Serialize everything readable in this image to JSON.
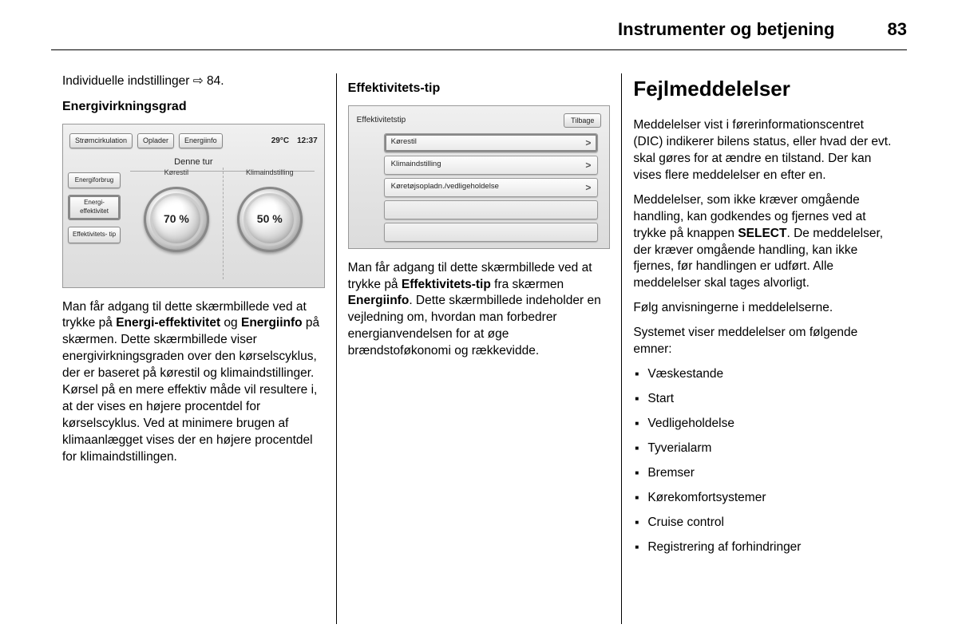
{
  "page_header": {
    "title": "Instrumenter og betjening",
    "number": "83"
  },
  "col1": {
    "line1_prefix": "Individuelle indstillinger ",
    "line1_ref": "⇨ 84.",
    "h_section": "Energivirkningsgrad",
    "screen": {
      "tabs": [
        "Strømcirkulation",
        "Oplader",
        "Energiinfo"
      ],
      "temp": "29°C",
      "time": "12:37",
      "subtitle": "Denne tur",
      "left_buttons": [
        "Energiforbrug",
        "Energi-\neffektivitet",
        "Effektivitets-\ntip"
      ],
      "left_active_index": 1,
      "dials": [
        {
          "label": "Kørestil",
          "value": "70 %"
        },
        {
          "label": "Klimaindstilling",
          "value": "50 %"
        }
      ]
    },
    "para_parts": [
      "Man får adgang til dette skærmbillede ved at trykke på ",
      "Energi-effektivitet",
      " og ",
      "Energiinfo",
      " på skærmen. Dette skærmbillede viser energivirkningsgraden over den kørselscyklus, der er baseret på kørestil og klimaindstillinger. Kørsel på en mere effektiv måde vil resultere i, at der vises en højere procentdel for kørselscyklus. Ved at minimere brugen af klimaanlægget vises der en højere procentdel for klimaindstillingen."
    ]
  },
  "col2": {
    "h_section": "Effektivitets-tip",
    "screen": {
      "title": "Effektivitetstip",
      "back": "Tilbage",
      "rows": [
        {
          "label": "Kørestil",
          "selected": true
        },
        {
          "label": "Klimaindstilling",
          "selected": false
        },
        {
          "label": "Køretøjsopladn./vedligeholdelse",
          "selected": false
        },
        {
          "label": "",
          "selected": false
        },
        {
          "label": "",
          "selected": false
        }
      ]
    },
    "para_parts": [
      "Man får adgang til dette skærmbillede ved at trykke på ",
      "Effektivitets-tip",
      " fra skærmen ",
      "Energiinfo",
      ". Dette skærmbillede indeholder en vejledning om, hvordan man forbedrer energianvendelsen for at øge brændstoføkonomi og rækkevidde."
    ]
  },
  "col3": {
    "h_big": "Fejlmeddelelser",
    "p1": "Meddelelser vist i førerinformationscentret (DIC) indikerer bilens status, eller hvad der evt. skal gøres for at ændre en tilstand. Der kan vises flere meddelelser en efter en.",
    "p2_parts": [
      "Meddelelser, som ikke kræver omgående handling, kan godkendes og fjernes ved at trykke på knappen ",
      "SELECT",
      ". De meddelelser, der kræver omgående handling, kan ikke fjernes, før handlingen er udført. Alle meddelelser skal tages alvorligt."
    ],
    "p3": "Følg anvisningerne i meddelelserne.",
    "p4": "Systemet viser meddelelser om følgende emner:",
    "bullets": [
      "Væskestande",
      "Start",
      "Vedligeholdelse",
      "Tyverialarm",
      "Bremser",
      "Kørekomfortsystemer",
      "Cruise control",
      "Registrering af forhindringer"
    ]
  }
}
